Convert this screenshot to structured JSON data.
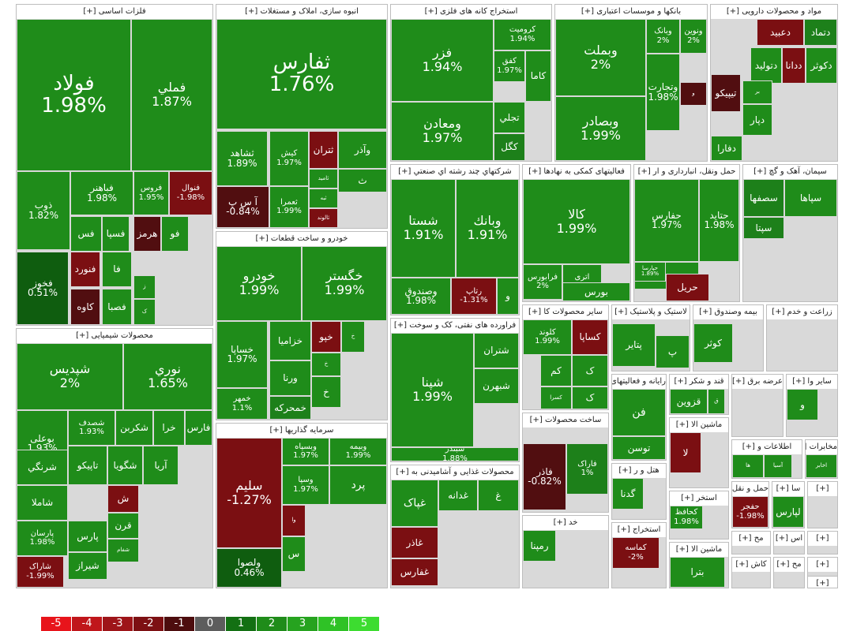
{
  "colors": {
    "-5": "#e8141b",
    "-4": "#b8131a",
    "-3": "#941417",
    "-2": "#7b0f12",
    "-1": "#510e10",
    "0": "#595959",
    "1": "#0f5d0f",
    "2": "#1d801a",
    "3": "#23931d",
    "4": "#2aab21",
    "5": "#3ddc30",
    "sector_bg": "#d9d9d9",
    "header_bg": "#ffffff"
  },
  "legend": [
    {
      "label": "-5",
      "level": "-5"
    },
    {
      "label": "-4",
      "level": "-4"
    },
    {
      "label": "-3",
      "level": "-3"
    },
    {
      "label": "-2",
      "level": "-2"
    },
    {
      "label": "-1",
      "level": "-1"
    },
    {
      "label": "0",
      "level": "0"
    },
    {
      "label": "1",
      "level": "1"
    },
    {
      "label": "2",
      "level": "2"
    },
    {
      "label": "3",
      "level": "3"
    },
    {
      "label": "4",
      "level": "4"
    },
    {
      "label": "5",
      "level": "5"
    }
  ],
  "chart_data": {
    "type": "treemap",
    "color_scale": [
      -5,
      -4,
      -3,
      -2,
      -1,
      0,
      1,
      2,
      3,
      4,
      5
    ],
    "sectors": [
      {
        "title": "فلزات اساسی [+]",
        "tiles": [
          {
            "symbol": "فولاد",
            "pct": "1.98%",
            "value": 1.98
          },
          {
            "symbol": "فملي",
            "pct": "1.87%",
            "value": 1.87
          },
          {
            "symbol": "ذوب",
            "pct": "1.82%",
            "value": 1.82
          },
          {
            "symbol": "فخوز",
            "pct": "0.51%",
            "value": 0.51
          },
          {
            "symbol": "فباهنر",
            "pct": "1.98%",
            "value": 1.98
          },
          {
            "symbol": "فروس",
            "pct": "1.95%",
            "value": 1.95
          },
          {
            "symbol": "فنوال",
            "pct": "-1.98%",
            "value": -1.98
          },
          {
            "symbol": "فس",
            "pct": "",
            "value": 2
          },
          {
            "symbol": "فسپا",
            "pct": "",
            "value": 2
          },
          {
            "symbol": "هرمز",
            "pct": "",
            "value": -1.5
          },
          {
            "symbol": "فو",
            "pct": "",
            "value": 2
          },
          {
            "symbol": "فنورد",
            "pct": "",
            "value": -2
          },
          {
            "symbol": "فا",
            "pct": "",
            "value": 2
          },
          {
            "symbol": "كاوه",
            "pct": "",
            "value": -1.5
          },
          {
            "symbol": "فصبا",
            "pct": "",
            "value": 2
          },
          {
            "symbol": "ز",
            "pct": "",
            "value": 2
          },
          {
            "symbol": "ک",
            "pct": "",
            "value": 2
          }
        ]
      },
      {
        "title": "انبوه سازی، املاک و مستغلات [+]",
        "tiles": [
          {
            "symbol": "ثفارس",
            "pct": "1.76%",
            "value": 1.76
          },
          {
            "symbol": "ثشاهد",
            "pct": "1.89%",
            "value": 1.89
          },
          {
            "symbol": "کیش",
            "pct": "1.97%",
            "value": 1.97
          },
          {
            "symbol": "ثتران",
            "pct": "",
            "value": -2
          },
          {
            "symbol": "وآذر",
            "pct": "",
            "value": 2
          },
          {
            "symbol": "آ س پ",
            "pct": "-0.84%",
            "value": -0.84
          },
          {
            "symbol": "ثامید",
            "pct": "",
            "value": 2
          },
          {
            "symbol": "ث",
            "pct": "",
            "value": 2
          },
          {
            "symbol": "ثبه",
            "pct": "",
            "value": 2
          },
          {
            "symbol": "ثعمرا",
            "pct": "1.99%",
            "value": 1.99
          },
          {
            "symbol": "ثالوند",
            "pct": "",
            "value": -2
          }
        ]
      },
      {
        "title": "استخراج کانه های فلزی [+]",
        "tiles": [
          {
            "symbol": "فزر",
            "pct": "1.94%",
            "value": 1.94
          },
          {
            "symbol": "کرومیت",
            "pct": "1.94%",
            "value": 1.94
          },
          {
            "symbol": "کفق",
            "pct": "1.97%",
            "value": 1.97
          },
          {
            "symbol": "کاما",
            "pct": "",
            "value": 2
          },
          {
            "symbol": "ومعادن",
            "pct": "1.97%",
            "value": 1.97
          },
          {
            "symbol": "تجلي",
            "pct": "",
            "value": 2
          },
          {
            "symbol": "کگل",
            "pct": "",
            "value": 1
          }
        ]
      },
      {
        "title": "بانکها و موسسات اعتباری [+]",
        "tiles": [
          {
            "symbol": "وبملت",
            "pct": "2%",
            "value": 2.0
          },
          {
            "symbol": "وبصادر",
            "pct": "1.99%",
            "value": 1.99
          },
          {
            "symbol": "وتجارت",
            "pct": "1.98%",
            "value": 1.98
          },
          {
            "symbol": "وبانک",
            "pct": "2%",
            "value": 2.0
          },
          {
            "symbol": "ونوين",
            "pct": "2%",
            "value": 2.0
          },
          {
            "symbol": "و",
            "pct": "",
            "value": -1.5
          }
        ]
      },
      {
        "title": "مواد و محصولات دارویی [+]",
        "tiles": [
          {
            "symbol": "دعبيد",
            "pct": "",
            "value": -2
          },
          {
            "symbol": "دتماد",
            "pct": "",
            "value": 1
          },
          {
            "symbol": "دکوثر",
            "pct": "",
            "value": 2
          },
          {
            "symbol": "ددانا",
            "pct": "",
            "value": -2
          },
          {
            "symbol": "دتوليد",
            "pct": "",
            "value": 2
          },
          {
            "symbol": "تيپيکو",
            "pct": "",
            "value": -1.5
          },
          {
            "symbol": "بر",
            "pct": "",
            "value": 2
          },
          {
            "symbol": "دپار",
            "pct": "",
            "value": 2
          },
          {
            "symbol": "دفارا",
            "pct": "",
            "value": 2
          }
        ]
      },
      {
        "title": "شرکتهاي چند رشته اي صنعتي [+]",
        "tiles": [
          {
            "symbol": "شستا",
            "pct": "1.91%",
            "value": 1.91
          },
          {
            "symbol": "وبانك",
            "pct": "1.91%",
            "value": 1.91
          },
          {
            "symbol": "وصندوق",
            "pct": "1.98%",
            "value": 1.98
          },
          {
            "symbol": "رتاپ",
            "pct": "-1.31%",
            "value": -1.31
          },
          {
            "symbol": "و",
            "pct": "",
            "value": 2
          }
        ]
      },
      {
        "title": "فعالیتهای کمکی به نهادها [+]",
        "tiles": [
          {
            "symbol": "كالا",
            "pct": "1.99%",
            "value": 1.99
          },
          {
            "symbol": "فرابورس",
            "pct": "2%",
            "value": 2.0
          },
          {
            "symbol": "اتری",
            "pct": "1.96%",
            "value": 1.96
          },
          {
            "symbol": "بورس",
            "pct": "",
            "value": 2
          }
        ]
      },
      {
        "title": "حمل ونقل، انبارداری و ار [+]",
        "tiles": [
          {
            "symbol": "حفارس",
            "pct": "1.97%",
            "value": 1.97
          },
          {
            "symbol": "حتايد",
            "pct": "1.98%",
            "value": 1.98
          },
          {
            "symbol": "حسينا",
            "pct": "",
            "value": 2
          },
          {
            "symbol": "حپارسا",
            "pct": "1.89%",
            "value": 1.89
          },
          {
            "symbol": "حريل",
            "pct": "",
            "value": -2
          }
        ]
      },
      {
        "title": "سیمان، آهک و گچ [+]",
        "tiles": [
          {
            "symbol": "سصفها",
            "pct": "",
            "value": 1
          },
          {
            "symbol": "سپاها",
            "pct": "",
            "value": 2
          },
          {
            "symbol": "سپتا",
            "pct": "",
            "value": 1
          }
        ]
      },
      {
        "title": "خودرو و ساخت قطعات [+]",
        "tiles": [
          {
            "symbol": "خودرو",
            "pct": "1.99%",
            "value": 1.99
          },
          {
            "symbol": "خگستر",
            "pct": "1.99%",
            "value": 1.99
          },
          {
            "symbol": "خساپا",
            "pct": "1.97%",
            "value": 1.97
          },
          {
            "symbol": "خزاميا",
            "pct": "",
            "value": 2
          },
          {
            "symbol": "خپو",
            "pct": "",
            "value": -2
          },
          {
            "symbol": "خ",
            "pct": "",
            "value": 2
          },
          {
            "symbol": "ورنا",
            "pct": "",
            "value": 2
          },
          {
            "symbol": "خ",
            "pct": "",
            "value": 2
          },
          {
            "symbol": "خمهر",
            "pct": "1.1%",
            "value": 1.1
          },
          {
            "symbol": "خمحركه",
            "pct": "",
            "value": 1
          },
          {
            "symbol": "خ",
            "pct": "",
            "value": 2
          }
        ]
      },
      {
        "title": "محصولات شیمیایی [+]",
        "tiles": [
          {
            "symbol": "شپديس",
            "pct": "2%",
            "value": 2.0
          },
          {
            "symbol": "نوري",
            "pct": "1.65%",
            "value": 1.65
          },
          {
            "symbol": "بوعلی",
            "pct": "1.93%",
            "value": 1.93
          },
          {
            "symbol": "شصدف",
            "pct": "1.93%",
            "value": 1.93
          },
          {
            "symbol": "شكربن",
            "pct": "",
            "value": 2
          },
          {
            "symbol": "خرا",
            "pct": "",
            "value": 2
          },
          {
            "symbol": "فارس",
            "pct": "",
            "value": 2
          },
          {
            "symbol": "شرنگي",
            "pct": "",
            "value": 2
          },
          {
            "symbol": "تاپيكو",
            "pct": "",
            "value": 2
          },
          {
            "symbol": "شگويا",
            "pct": "",
            "value": 2
          },
          {
            "symbol": "آريا",
            "pct": "",
            "value": 2
          },
          {
            "symbol": "شاملا",
            "pct": "",
            "value": 2
          },
          {
            "symbol": "ش",
            "pct": "",
            "value": -2
          },
          {
            "symbol": "پارسان",
            "pct": "1.98%",
            "value": 1.98
          },
          {
            "symbol": "قرن",
            "pct": "",
            "value": 2
          },
          {
            "symbol": "پارس",
            "pct": "",
            "value": 2
          },
          {
            "symbol": "شفام",
            "pct": "",
            "value": 2
          },
          {
            "symbol": "شیراز",
            "pct": "",
            "value": 2
          },
          {
            "symbol": "شاراک",
            "pct": "-1.99%",
            "value": -1.99
          }
        ]
      },
      {
        "title": "فراورده های نفتی، کک و سوخت [+]",
        "tiles": [
          {
            "symbol": "شپنا",
            "pct": "1.99%",
            "value": 1.99
          },
          {
            "symbol": "شتران",
            "pct": "",
            "value": 2
          },
          {
            "symbol": "شبهرن",
            "pct": "",
            "value": 2
          },
          {
            "symbol": "شبندر",
            "pct": "1.88%",
            "value": 1.88
          }
        ]
      },
      {
        "title": "سایر محصولات کا [+]",
        "tiles": [
          {
            "symbol": "کلوند",
            "pct": "1.99%",
            "value": 1.99
          },
          {
            "symbol": "كساپا",
            "pct": "",
            "value": -2
          },
          {
            "symbol": "کم",
            "pct": "",
            "value": 2
          },
          {
            "symbol": "ک",
            "pct": "",
            "value": 2
          },
          {
            "symbol": "كسرا",
            "pct": "",
            "value": 2
          },
          {
            "symbol": "ک",
            "pct": "",
            "value": 2
          }
        ]
      },
      {
        "title": "لاستیک و پلاستیک [+]",
        "tiles": [
          {
            "symbol": "پتاير",
            "pct": "",
            "value": 2
          },
          {
            "symbol": "پ",
            "pct": "",
            "value": 2
          }
        ]
      },
      {
        "title": "بیمه وصندوق [+]",
        "tiles": [
          {
            "symbol": "كوثر",
            "pct": "",
            "value": 2
          }
        ]
      },
      {
        "title": "زراعت و خدم [+]",
        "tiles": []
      },
      {
        "title": "سرمایه گذاریها [+]",
        "tiles": [
          {
            "symbol": "سليم",
            "pct": "-1.27%",
            "value": -1.27
          },
          {
            "symbol": "وبسپاه",
            "pct": "1.97%",
            "value": 1.97
          },
          {
            "symbol": "وبيمه",
            "pct": "1.99%",
            "value": 1.99
          },
          {
            "symbol": "وسپا",
            "pct": "1.97%",
            "value": 1.97
          },
          {
            "symbol": "پرد",
            "pct": "",
            "value": 2
          },
          {
            "symbol": "وتوسم",
            "pct": "1.99%",
            "value": 1.99
          },
          {
            "symbol": "وا",
            "pct": "",
            "value": -2
          },
          {
            "symbol": "س",
            "pct": "",
            "value": 2
          },
          {
            "symbol": "ولصوا",
            "pct": "0.46%",
            "value": 0.46
          }
        ]
      },
      {
        "title": "محصولات غذایی و آشامیدنی به [+]",
        "tiles": [
          {
            "symbol": "غپاک",
            "pct": "",
            "value": 2
          },
          {
            "symbol": "غدانه",
            "pct": "",
            "value": 2
          },
          {
            "symbol": "غصينو",
            "pct": "",
            "value": 2
          },
          {
            "symbol": "غ",
            "pct": "",
            "value": 2
          },
          {
            "symbol": "غاذر",
            "pct": "",
            "value": -2
          },
          {
            "symbol": "غفارس",
            "pct": "",
            "value": -2
          }
        ]
      },
      {
        "title": "ساخت محصولات [+]",
        "tiles": [
          {
            "symbol": "فاذر",
            "pct": "-0.82%",
            "value": -0.82
          },
          {
            "symbol": "فاراک",
            "pct": "1%",
            "value": 1.0
          }
        ]
      },
      {
        "title": "رایانه و فعالیتهای [+]",
        "tiles": [
          {
            "symbol": "فن",
            "pct": "",
            "value": 2
          },
          {
            "symbol": "توسن",
            "pct": "",
            "value": 2
          }
        ]
      },
      {
        "title": "قند و شکر [+]",
        "tiles": [
          {
            "symbol": "قزوين",
            "pct": "",
            "value": 2
          },
          {
            "symbol": "ق",
            "pct": "",
            "value": 2
          }
        ]
      },
      {
        "title": "عرضه برق [+]",
        "tiles": []
      },
      {
        "title": "سایر وا [+]",
        "tiles": [
          {
            "symbol": "و",
            "pct": "",
            "value": 2
          }
        ]
      },
      {
        "title": "هتل و ر [+]",
        "tiles": [
          {
            "symbol": "گدنا",
            "pct": "",
            "value": 2
          }
        ]
      },
      {
        "title": "ماشین الا [+]",
        "tiles": [
          {
            "symbol": "لا",
            "pct": "",
            "value": -2
          }
        ]
      },
      {
        "title": "اطلاعات و [+]",
        "tiles": [
          {
            "symbol": "ها",
            "pct": "",
            "value": 2
          },
          {
            "symbol": "آسیا",
            "pct": "",
            "value": 2
          }
        ]
      },
      {
        "title": "مخابرات [+]",
        "tiles": [
          {
            "symbol": "اخابر",
            "pct": "",
            "value": 2
          }
        ]
      },
      {
        "title": "استخر [+]",
        "tiles": [
          {
            "symbol": "کحافظ",
            "pct": "1.98%",
            "value": 1.98
          }
        ]
      },
      {
        "title": "حمل و نقل [+]",
        "tiles": [
          {
            "symbol": "حفجر",
            "pct": "-1.98%",
            "value": -1.98
          }
        ]
      },
      {
        "title": "سا [+]",
        "tiles": [
          {
            "symbol": "لپارس",
            "pct": "",
            "value": 2
          }
        ]
      },
      {
        "title": "خد [+]",
        "tiles": [
          {
            "symbol": "رمپنا",
            "pct": "",
            "value": 2
          }
        ]
      },
      {
        "title": "استخراج [+]",
        "tiles": [
          {
            "symbol": "کماسه",
            "pct": "-2%",
            "value": -2.0
          }
        ]
      },
      {
        "title": "ماشین الا [+]",
        "tiles": [
          {
            "symbol": "بترا",
            "pct": "",
            "value": 2
          }
        ]
      },
      {
        "title": "مح [+]",
        "tiles": []
      },
      {
        "title": "اس [+]",
        "tiles": []
      },
      {
        "title": "کاش [+]",
        "tiles": []
      },
      {
        "title": "مح [+]",
        "tiles": []
      },
      {
        "title": "[+]",
        "tiles": []
      },
      {
        "title": "[+]",
        "tiles": []
      },
      {
        "title": "[+]",
        "tiles": []
      },
      {
        "title": "[+]",
        "tiles": []
      }
    ]
  }
}
